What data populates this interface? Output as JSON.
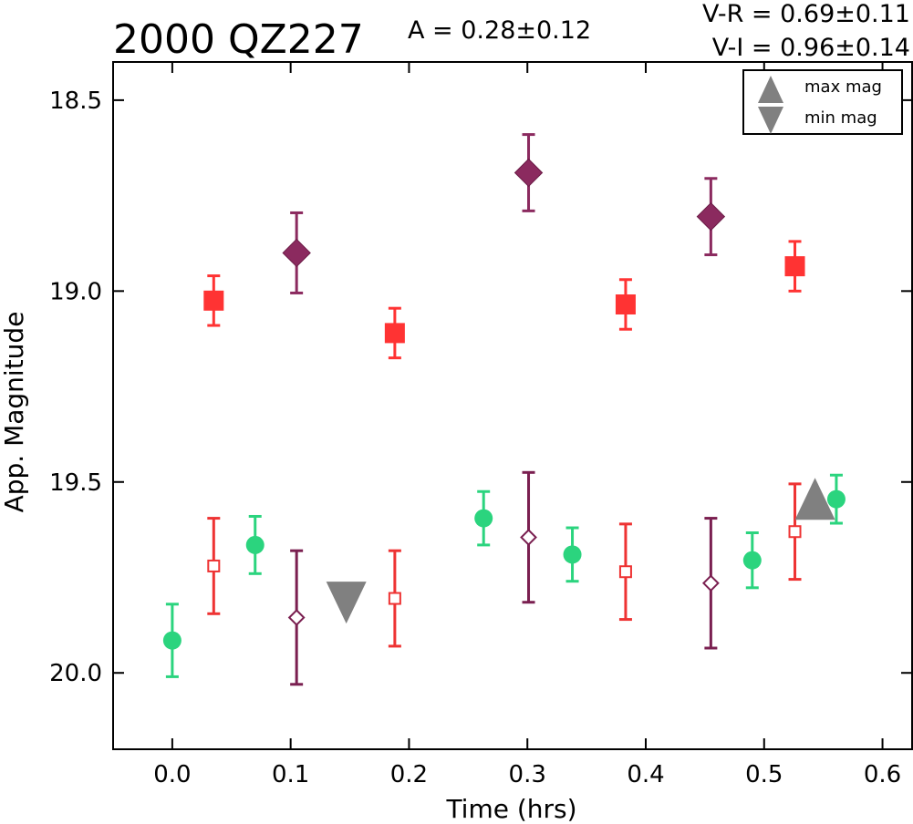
{
  "chart_data": {
    "type": "scatter",
    "title": "2000 QZ227",
    "amplitude_text": "A  = 0.28±0.12",
    "color_texts": [
      "V-R = 0.69±0.11",
      "V-I  = 0.96±0.14"
    ],
    "xlabel": "Time (hrs)",
    "ylabel": "App. Magnitude",
    "xlim": [
      -0.05,
      0.625
    ],
    "ylim": [
      20.2,
      18.4
    ],
    "y_inverted": true,
    "xticks": [
      "0.0",
      "0.1",
      "0.2",
      "0.3",
      "0.4",
      "0.5",
      "0.6"
    ],
    "yticks": [
      "18.5",
      "19.0",
      "19.5",
      "20.0"
    ],
    "grid": false,
    "legend": {
      "placement": "top-right",
      "entries": [
        "max mag",
        "min mag"
      ]
    },
    "series": [
      {
        "marker": "square-filled",
        "color": "#ff3333",
        "points": [
          {
            "x": 0.035,
            "y": 19.025,
            "err": 0.065
          },
          {
            "x": 0.188,
            "y": 19.11,
            "err": 0.065
          },
          {
            "x": 0.383,
            "y": 19.035,
            "err": 0.065
          },
          {
            "x": 0.526,
            "y": 18.935,
            "err": 0.065
          }
        ]
      },
      {
        "marker": "square-open",
        "color": "#ee3333",
        "points": [
          {
            "x": 0.035,
            "y": 19.72,
            "err": 0.125
          },
          {
            "x": 0.188,
            "y": 19.805,
            "err": 0.125
          },
          {
            "x": 0.383,
            "y": 19.735,
            "err": 0.125
          },
          {
            "x": 0.526,
            "y": 19.63,
            "err": 0.125
          }
        ]
      },
      {
        "marker": "diamond-filled",
        "color": "#8b2a5f",
        "points": [
          {
            "x": 0.105,
            "y": 18.9,
            "err": 0.105
          },
          {
            "x": 0.301,
            "y": 18.69,
            "err": 0.1
          },
          {
            "x": 0.455,
            "y": 18.805,
            "err": 0.1
          }
        ]
      },
      {
        "marker": "diamond-open",
        "color": "#7a1f50",
        "points": [
          {
            "x": 0.105,
            "y": 19.855,
            "err": 0.175
          },
          {
            "x": 0.301,
            "y": 19.645,
            "err": 0.17
          },
          {
            "x": 0.455,
            "y": 19.765,
            "err": 0.17
          }
        ]
      },
      {
        "marker": "circle-filled",
        "color": "#2bd47e",
        "points": [
          {
            "x": 0.0,
            "y": 19.915,
            "err": 0.095
          },
          {
            "x": 0.07,
            "y": 19.665,
            "err": 0.075
          },
          {
            "x": 0.263,
            "y": 19.595,
            "err": 0.07
          },
          {
            "x": 0.338,
            "y": 19.69,
            "err": 0.07
          },
          {
            "x": 0.49,
            "y": 19.705,
            "err": 0.072
          },
          {
            "x": 0.561,
            "y": 19.545,
            "err": 0.063
          }
        ]
      }
    ],
    "markers": [
      {
        "kind": "min mag",
        "shape": "triangle-down",
        "x": 0.147,
        "y": 19.805,
        "color": "#808080"
      },
      {
        "kind": "max mag",
        "shape": "triangle-up",
        "x": 0.543,
        "y": 19.555,
        "color": "#808080"
      }
    ]
  }
}
